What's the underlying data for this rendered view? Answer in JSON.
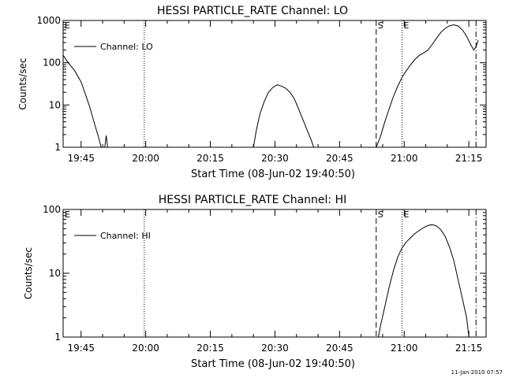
{
  "footer_timestamp": "11-Jan-2010 07:57",
  "chart_data": [
    {
      "type": "line",
      "title": "HESSI PARTICLE_RATE Channel: LO",
      "xlabel": "Start Time (08-Jun-02 19:40:50)",
      "ylabel": "Counts/sec",
      "yscale": "log",
      "xlim": [
        "19:40:50",
        "21:19:00"
      ],
      "ylim": [
        1,
        1000
      ],
      "x_ticks": [
        "19:45",
        "20:00",
        "20:15",
        "20:30",
        "20:45",
        "21:00",
        "21:15"
      ],
      "y_ticks": [
        "1",
        "10",
        "100",
        "1000"
      ],
      "grid": false,
      "legend": {
        "position": "top-left",
        "entries": [
          "Channel: LO"
        ]
      },
      "markers": [
        {
          "time": "19:59:40",
          "style": "dotted",
          "label": ""
        },
        {
          "time": "20:53:30",
          "style": "dashed",
          "label": "S"
        },
        {
          "time": "20:59:30",
          "style": "dotted",
          "label": "E"
        },
        {
          "time": "21:16:40",
          "style": "dashdot",
          "label": ""
        }
      ],
      "series": [
        {
          "name": "Channel: LO",
          "segments": [
            [
              [
                "19:40:50",
                150
              ],
              [
                "19:42:00",
                100
              ],
              [
                "19:43:30",
                65
              ],
              [
                "19:45:00",
                35
              ],
              [
                "19:46:00",
                18
              ],
              [
                "19:47:00",
                9
              ],
              [
                "19:48:00",
                4
              ],
              [
                "19:49:00",
                1.8
              ],
              [
                "19:49:40",
                1
              ]
            ],
            [
              [
                "19:50:30",
                1
              ],
              [
                "19:50:50",
                1.9
              ],
              [
                "19:51:10",
                1
              ]
            ],
            [
              [
                "20:25:00",
                1
              ],
              [
                "20:25:40",
                2.5
              ],
              [
                "20:26:30",
                6
              ],
              [
                "20:27:30",
                12
              ],
              [
                "20:28:30",
                20
              ],
              [
                "20:29:30",
                26
              ],
              [
                "20:30:30",
                30
              ],
              [
                "20:31:30",
                28
              ],
              [
                "20:32:30",
                25
              ],
              [
                "20:33:30",
                20
              ],
              [
                "20:34:30",
                14
              ],
              [
                "20:35:30",
                8
              ],
              [
                "20:36:30",
                4.5
              ],
              [
                "20:37:30",
                2.5
              ],
              [
                "20:38:30",
                1.4
              ],
              [
                "20:39:00",
                1
              ]
            ],
            [
              [
                "20:53:30",
                1
              ],
              [
                "20:54:30",
                1.8
              ],
              [
                "20:55:30",
                4
              ],
              [
                "20:56:30",
                8
              ],
              [
                "20:57:30",
                16
              ],
              [
                "20:58:30",
                28
              ],
              [
                "20:59:30",
                45
              ],
              [
                "21:00:30",
                65
              ],
              [
                "21:01:30",
                90
              ],
              [
                "21:02:30",
                120
              ],
              [
                "21:03:30",
                150
              ],
              [
                "21:04:30",
                170
              ],
              [
                "21:05:30",
                200
              ],
              [
                "21:06:30",
                270
              ],
              [
                "21:07:30",
                380
              ],
              [
                "21:08:30",
                520
              ],
              [
                "21:09:30",
                650
              ],
              [
                "21:10:30",
                750
              ],
              [
                "21:11:30",
                790
              ],
              [
                "21:12:30",
                740
              ],
              [
                "21:13:30",
                600
              ],
              [
                "21:14:30",
                420
              ],
              [
                "21:15:30",
                260
              ],
              [
                "21:16:10",
                200
              ],
              [
                "21:16:40",
                240
              ],
              [
                "21:17:10",
                340
              ]
            ]
          ]
        }
      ]
    },
    {
      "type": "line",
      "title": "HESSI PARTICLE_RATE Channel: HI",
      "xlabel": "Start Time (08-Jun-02 19:40:50)",
      "ylabel": "Counts/sec",
      "yscale": "log",
      "xlim": [
        "19:40:50",
        "21:19:00"
      ],
      "ylim": [
        1,
        100
      ],
      "x_ticks": [
        "19:45",
        "20:00",
        "20:15",
        "20:30",
        "20:45",
        "21:00",
        "21:15"
      ],
      "y_ticks": [
        "1",
        "10",
        "100"
      ],
      "grid": false,
      "legend": {
        "position": "top-left",
        "entries": [
          "Channel: HI"
        ]
      },
      "markers": [
        {
          "time": "19:59:40",
          "style": "dotted",
          "label": ""
        },
        {
          "time": "20:53:30",
          "style": "dashed",
          "label": "S"
        },
        {
          "time": "20:59:30",
          "style": "dotted",
          "label": "E"
        },
        {
          "time": "21:16:40",
          "style": "dashdot",
          "label": ""
        }
      ],
      "series": [
        {
          "name": "Channel: HI",
          "segments": [
            [
              [
                "20:54:00",
                1
              ],
              [
                "20:54:30",
                1.5
              ],
              [
                "20:55:30",
                3
              ],
              [
                "20:56:30",
                6
              ],
              [
                "20:57:30",
                11
              ],
              [
                "20:58:30",
                18
              ],
              [
                "20:59:30",
                25
              ],
              [
                "21:00:30",
                31
              ],
              [
                "21:01:30",
                36
              ],
              [
                "21:02:30",
                42
              ],
              [
                "21:03:30",
                47
              ],
              [
                "21:04:30",
                52
              ],
              [
                "21:05:30",
                56
              ],
              [
                "21:06:30",
                58
              ],
              [
                "21:07:30",
                55
              ],
              [
                "21:08:30",
                48
              ],
              [
                "21:09:30",
                38
              ],
              [
                "21:10:30",
                26
              ],
              [
                "21:11:30",
                16
              ],
              [
                "21:12:30",
                8
              ],
              [
                "21:13:30",
                4
              ],
              [
                "21:14:30",
                2
              ],
              [
                "21:15:00",
                1
              ]
            ]
          ]
        }
      ]
    }
  ]
}
